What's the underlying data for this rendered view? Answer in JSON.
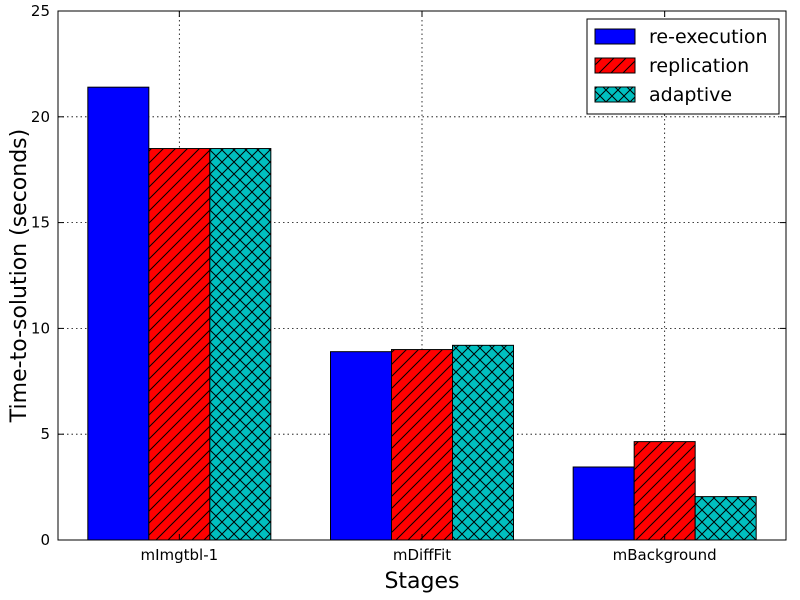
{
  "chart_data": {
    "type": "bar",
    "title": "",
    "xlabel": "Stages",
    "ylabel": "Time-to-solution (seconds)",
    "categories": [
      "mImgtbl-1",
      "mDiffFit",
      "mBackground"
    ],
    "ylim": [
      0,
      25
    ],
    "yticks": [
      0,
      5,
      10,
      15,
      20,
      25
    ],
    "grid": true,
    "legend_position": "top-right",
    "series": [
      {
        "name": "re-execution",
        "values": [
          21.4,
          8.9,
          3.45
        ],
        "color": "#0000ff",
        "hatch": "none"
      },
      {
        "name": "replication",
        "values": [
          18.5,
          9.0,
          4.65
        ],
        "color": "#ff0000",
        "hatch": "diagonal"
      },
      {
        "name": "adaptive",
        "values": [
          18.5,
          9.2,
          2.05
        ],
        "color": "#00bfbf",
        "hatch": "crosshatch"
      }
    ]
  }
}
